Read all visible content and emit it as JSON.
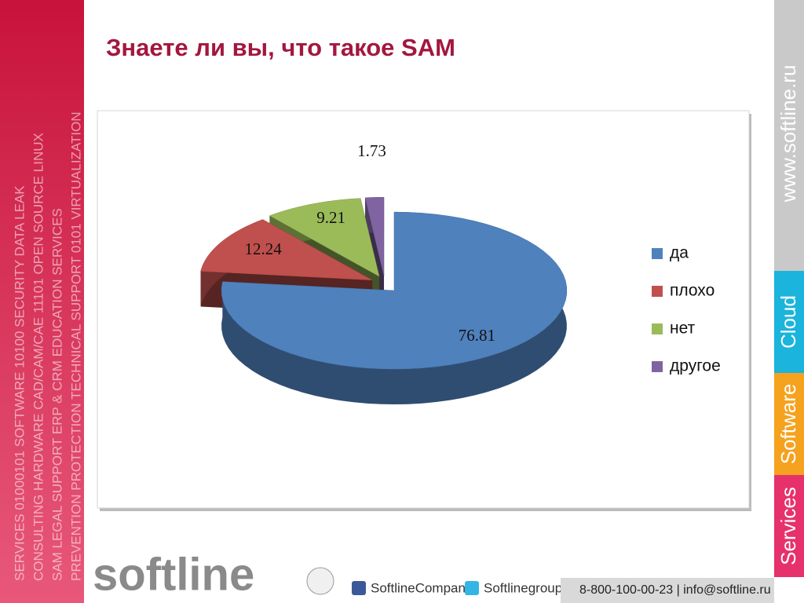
{
  "chart_data": {
    "type": "pie3d",
    "title": "Знаете ли вы, что такое SAM",
    "categories": [
      "да",
      "плохо",
      "нет",
      "другое"
    ],
    "values": [
      76.81,
      12.24,
      9.21,
      1.73
    ],
    "colors": [
      "#4f81bd",
      "#c0504d",
      "#9bbb59",
      "#8064a2"
    ],
    "legend": "right"
  },
  "left_band": [
    "SERVICES 01000101 SOFTWARE 10100 SECURITY DATA LEAK",
    "CONSULTING HARDWARE CAD/CAM/CAE 11101 OPEN SOURCE LINUX",
    "SAM LEGAL SUPPORT ERP & CRM EDUCATION SERVICES",
    "PREVENTION PROTECTION TECHNICAL SUPPORT 0101 VIRTUALIZATION"
  ],
  "right_band": {
    "url": "www.softline.ru",
    "tabs": [
      "Cloud",
      "Software",
      "Services"
    ]
  },
  "footer": {
    "logo": "softline",
    "social": [
      "SoftlineCompany",
      "Softlinegroup"
    ],
    "contact": "8-800-100-00-23 | info@softline.ru"
  }
}
